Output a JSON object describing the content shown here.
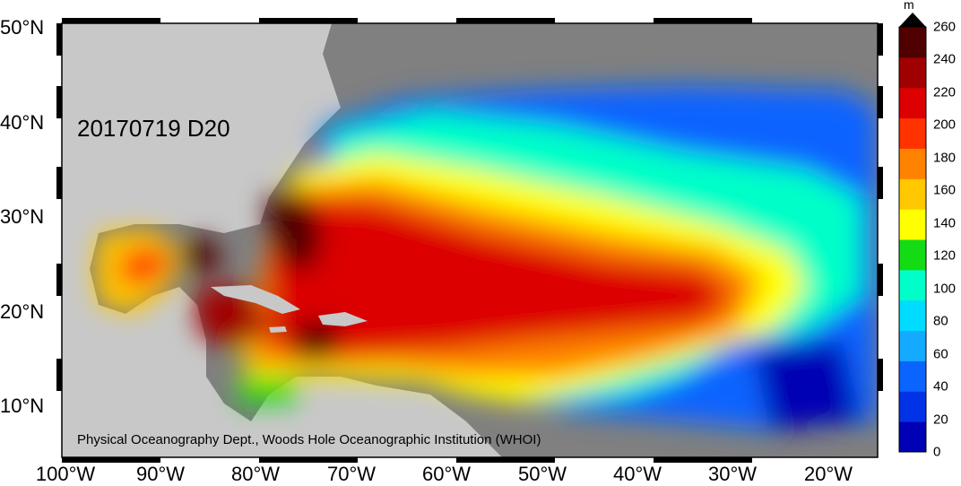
{
  "map": {
    "date_code": "20170719 D20",
    "credit": "Physical Oceanography Dept., Woods Hole Oceanographic Institution (WHOI)",
    "lat_labels": [
      "50°N",
      "40°N",
      "30°N",
      "20°N",
      "10°N"
    ],
    "lon_labels": [
      "100°W",
      "90°W",
      "80°W",
      "70°W",
      "60°W",
      "50°W",
      "40°W",
      "30°W",
      "20°W"
    ],
    "extent": {
      "lon_min": -100.5,
      "lon_max": -15,
      "lat_min": 5,
      "lat_max": 50
    },
    "land_color": "#c8c8c8",
    "mask_color": "#808080"
  },
  "colorbar": {
    "unit": "m",
    "ticks": [
      "0",
      "20",
      "40",
      "60",
      "80",
      "100",
      "120",
      "140",
      "160",
      "180",
      "200",
      "220",
      "240",
      "260"
    ],
    "colors": [
      "#0000b4",
      "#0032e6",
      "#0a64ff",
      "#14aaff",
      "#00dcff",
      "#00ffc8",
      "#14dc14",
      "#ffff00",
      "#ffc800",
      "#ff8200",
      "#ff3200",
      "#dc0000",
      "#a00000",
      "#500000"
    ]
  }
}
